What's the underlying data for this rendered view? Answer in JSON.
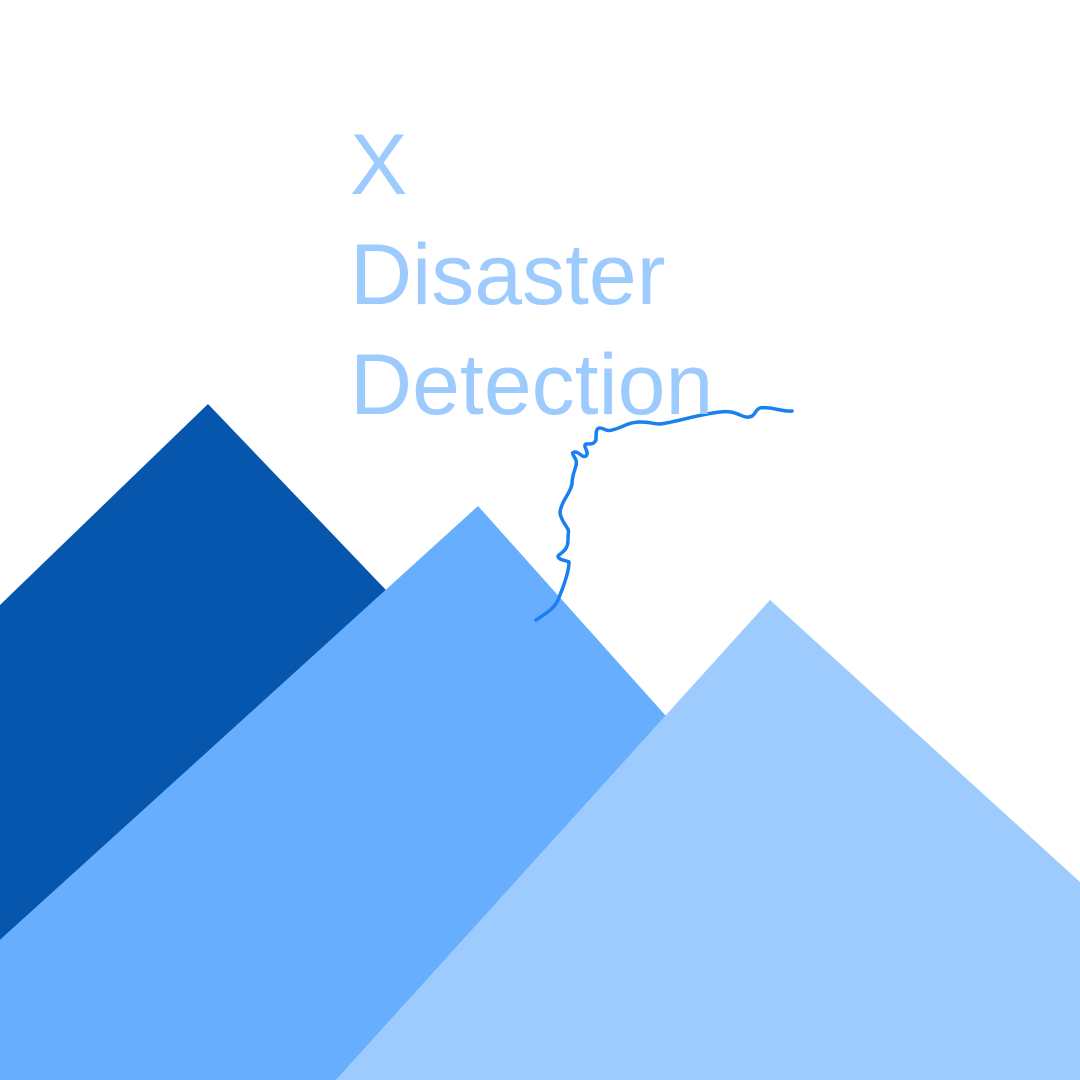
{
  "title": {
    "lines": [
      "X",
      "Disaster",
      "Detection"
    ]
  },
  "colors": {
    "background": "#ffffff",
    "title": "#9ecbfd",
    "mountain_back": "#0556ac",
    "mountain_middle": "#68aeff",
    "mountain_front": "#9ecbfd",
    "river": "#1a7ff0"
  },
  "icons": [
    "mountain-back-shape",
    "mountain-middle-shape",
    "mountain-front-shape",
    "river-line-icon"
  ]
}
